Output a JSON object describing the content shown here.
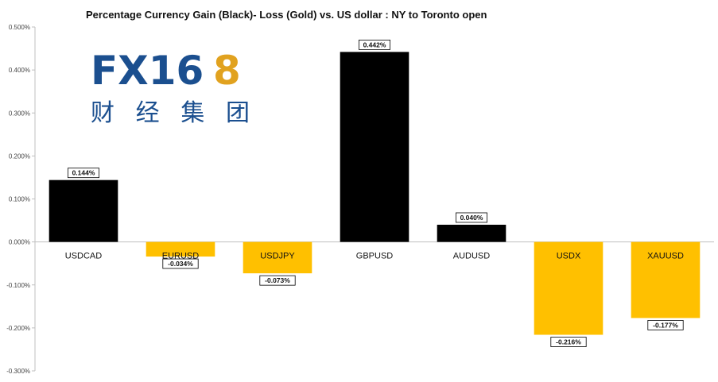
{
  "logo": {
    "fx": "FX16",
    "eight": "8",
    "cn": "财经集团"
  },
  "colors": {
    "gain": "#000000",
    "loss": "#ffc000",
    "axis": "#bfbfbf",
    "logo_blue": "#1b4f8f",
    "logo_gold": "#e1a21f"
  },
  "chart_data": {
    "type": "bar",
    "title": "Percentage Currency  Gain (Black)- Loss (Gold)  vs. US dollar :  NY  to Toronto  open",
    "categories": [
      "USDCAD",
      "EURUSD",
      "USDJPY",
      "GBPUSD",
      "AUDUSD",
      "USDX",
      "XAUUSD"
    ],
    "values": [
      0.144,
      -0.034,
      -0.073,
      0.442,
      0.04,
      -0.216,
      -0.177
    ],
    "data_labels": [
      "0.144%",
      "-0.034%",
      "-0.073%",
      "0.442%",
      "0.040%",
      "-0.216%",
      "-0.177%"
    ],
    "ylim": [
      -0.3,
      0.5
    ],
    "yticks": [
      0.5,
      0.4,
      0.3,
      0.2,
      0.1,
      0.0,
      -0.1,
      -0.2,
      -0.3
    ],
    "ytick_labels": [
      "0.500%",
      "0.400%",
      "0.300%",
      "0.200%",
      "0.100%",
      "0.000%",
      "-0.100%",
      "-0.200%",
      "-0.300%"
    ],
    "grid": false,
    "legend": "none"
  }
}
